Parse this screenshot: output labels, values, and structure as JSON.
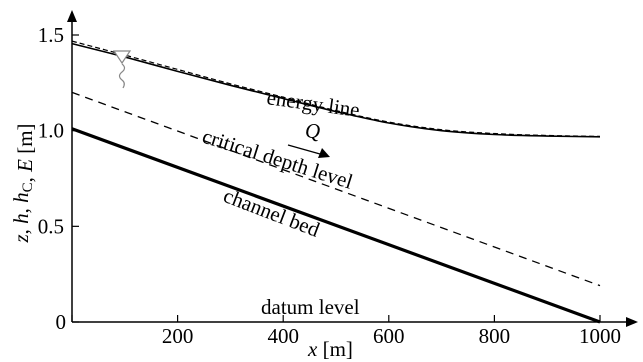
{
  "chart_data": {
    "type": "line",
    "title": "",
    "xlabel": "x [m]",
    "ylabel": "z, h, h_C, E [m]",
    "xlim": [
      0,
      1000
    ],
    "ylim": [
      0,
      1.5
    ],
    "x_ticks": [
      0,
      200,
      400,
      600,
      800,
      1000
    ],
    "y_ticks": [
      0,
      0.5,
      1.0,
      1.5
    ],
    "x_tick_labels": [
      "0",
      "200",
      "400",
      "600",
      "800",
      "1000"
    ],
    "y_tick_labels": [
      "0",
      "0.5",
      "1.0",
      "1.5"
    ],
    "grid": false,
    "series": [
      {
        "name": "energy line",
        "style": "dashed-thin",
        "x": [
          0,
          100,
          200,
          300,
          400,
          500,
          600,
          700,
          800,
          900,
          1000
        ],
        "y": [
          1.468,
          1.395,
          1.32,
          1.245,
          1.175,
          1.105,
          1.045,
          1.005,
          0.985,
          0.975,
          0.97
        ]
      },
      {
        "name": "water surface",
        "style": "solid",
        "x": [
          0,
          100,
          200,
          300,
          400,
          500,
          600,
          700,
          800,
          900,
          1000
        ],
        "y": [
          1.455,
          1.385,
          1.31,
          1.237,
          1.168,
          1.1,
          1.04,
          1.0,
          0.98,
          0.972,
          0.968
        ]
      },
      {
        "name": "critical depth level",
        "style": "dashed",
        "x": [
          0,
          1000
        ],
        "y": [
          1.2,
          0.19
        ]
      },
      {
        "name": "channel bed",
        "style": "solid-thick",
        "x": [
          0,
          1000
        ],
        "y": [
          1.01,
          0
        ]
      }
    ],
    "annotations": {
      "energy_line": "energy line",
      "critical_depth": "critical depth level",
      "channel_bed": "channel bed",
      "datum": "datum level",
      "discharge": "Q",
      "zero": "0"
    }
  }
}
